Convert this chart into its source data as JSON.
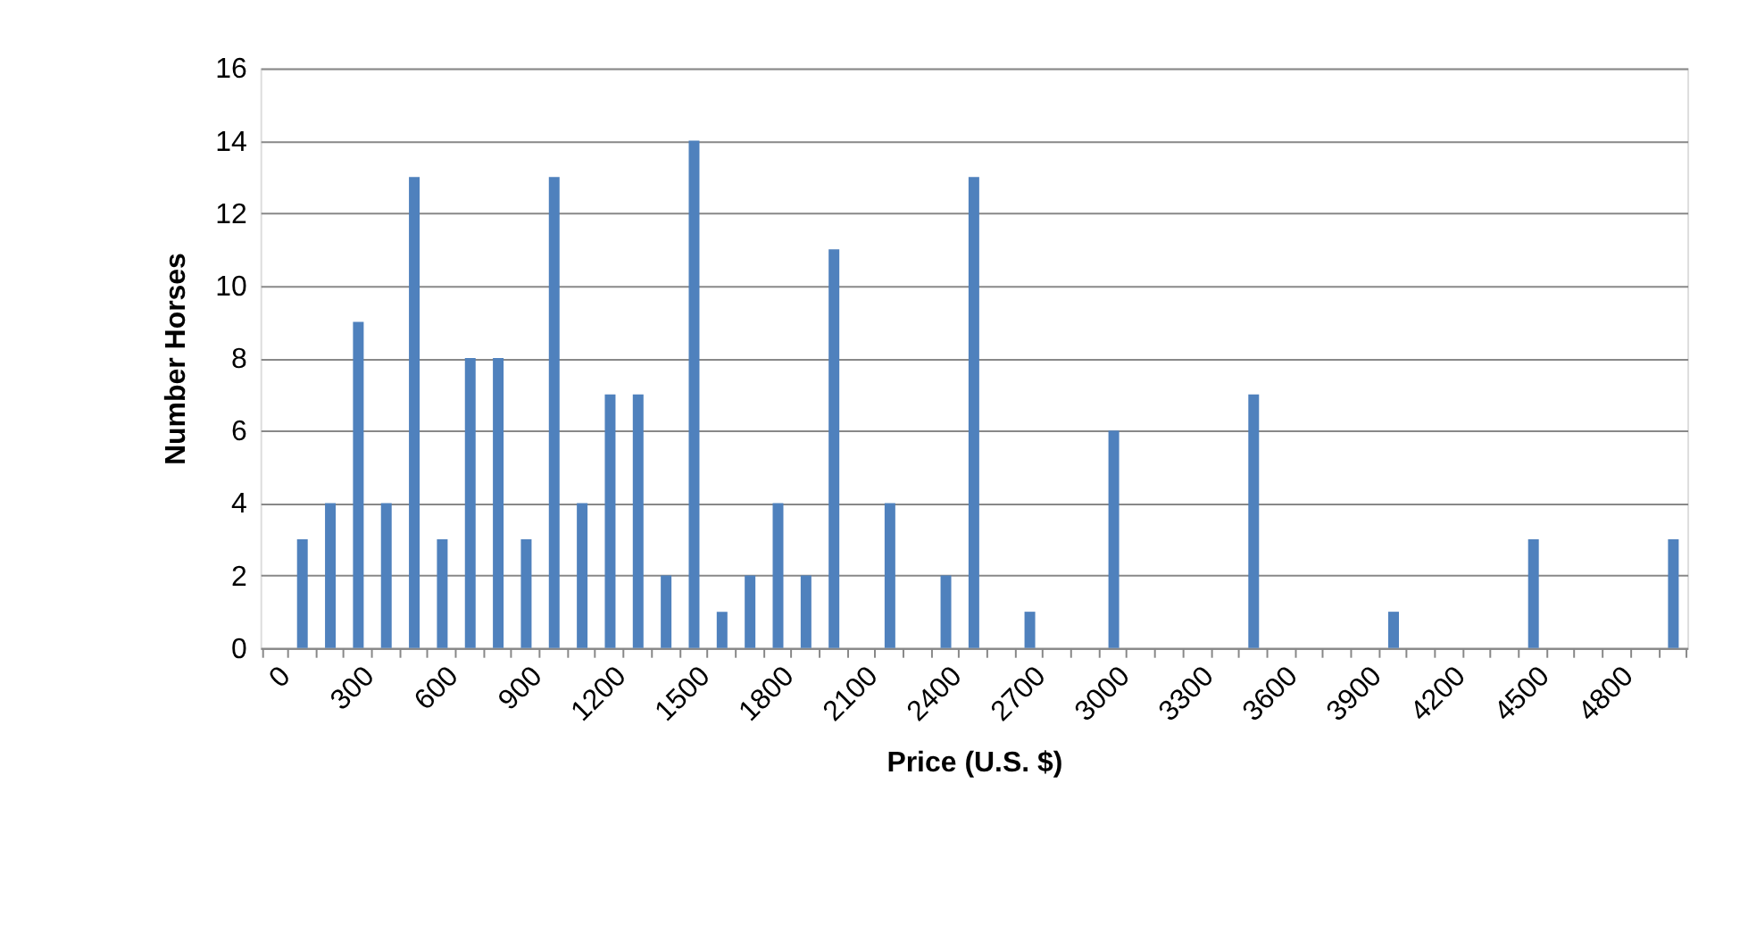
{
  "chart_data": {
    "type": "bar",
    "xlabel": "Price (U.S. $)",
    "ylabel": "Number Horses",
    "categories": [
      "0",
      null,
      null,
      "300",
      null,
      null,
      "600",
      null,
      null,
      "900",
      null,
      null,
      "1200",
      null,
      null,
      "1500",
      null,
      null,
      "1800",
      null,
      null,
      "2100",
      null,
      null,
      "2400",
      null,
      null,
      "2700",
      null,
      null,
      "3000",
      null,
      null,
      "3300",
      null,
      null,
      "3600",
      null,
      null,
      "3900",
      null,
      null,
      "4200",
      null,
      null,
      "4500",
      null,
      null,
      "4800",
      null,
      null
    ],
    "values": [
      0,
      3,
      4,
      9,
      4,
      13,
      3,
      8,
      8,
      3,
      13,
      4,
      7,
      7,
      2,
      14,
      1,
      2,
      4,
      2,
      11,
      0,
      4,
      0,
      2,
      13,
      0,
      1,
      0,
      0,
      6,
      0,
      0,
      0,
      0,
      7,
      0,
      0,
      0,
      0,
      1,
      0,
      0,
      0,
      0,
      3,
      0,
      0,
      0,
      0,
      3
    ],
    "color": "#4f81bd",
    "ylim": [
      0,
      16
    ],
    "yticks": [
      0,
      2,
      4,
      6,
      8,
      10,
      12,
      14,
      16
    ],
    "grid": "y"
  }
}
